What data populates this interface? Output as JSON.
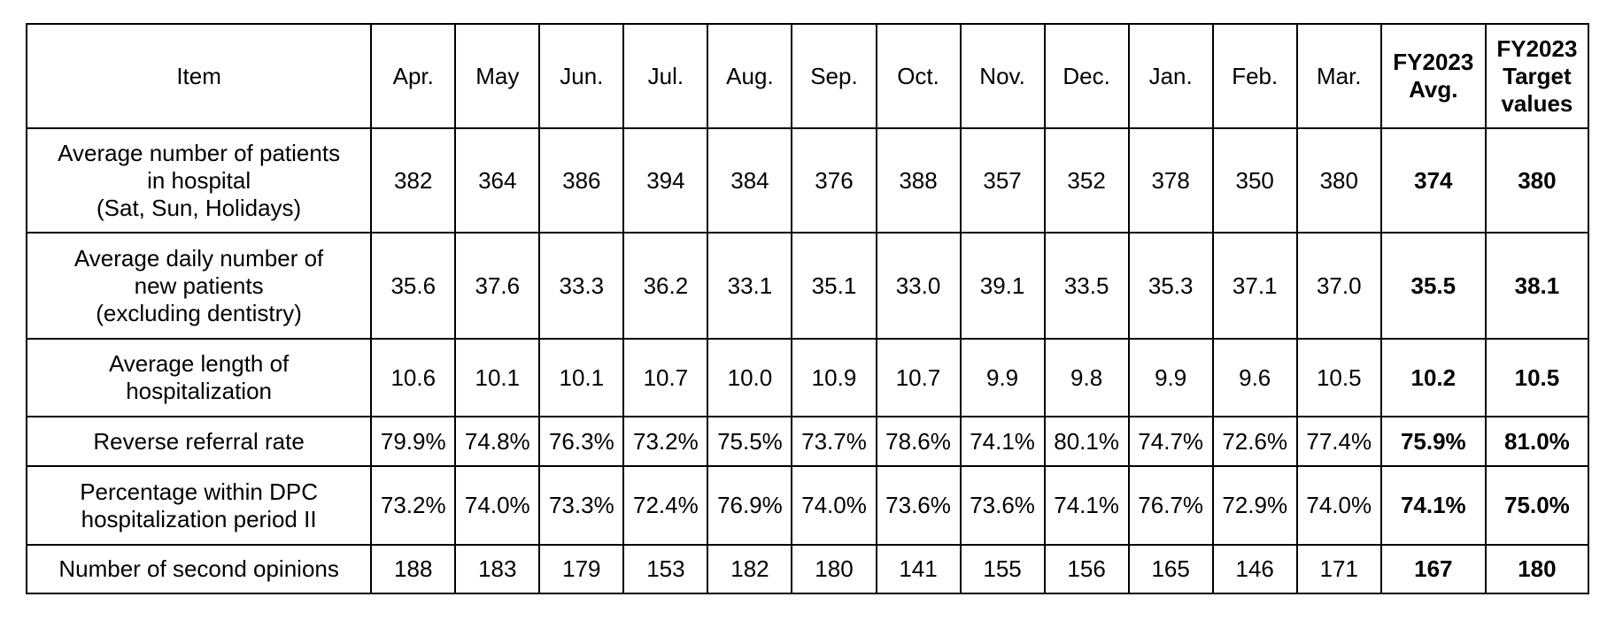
{
  "table": {
    "headers": {
      "item": "Item",
      "months": [
        "Apr.",
        "May",
        "Jun.",
        "Jul.",
        "Aug.",
        "Sep.",
        "Oct.",
        "Nov.",
        "Dec.",
        "Jan.",
        "Feb.",
        "Mar."
      ],
      "avg": "FY2023\nAvg.",
      "target": "FY2023\nTarget\nvalues"
    },
    "rows": [
      {
        "label": "Average number of patients\nin hospital\n(Sat, Sun, Holidays)",
        "values": [
          "382",
          "364",
          "386",
          "394",
          "384",
          "376",
          "388",
          "357",
          "352",
          "378",
          "350",
          "380"
        ],
        "avg": "374",
        "target": "380"
      },
      {
        "label": "Average daily number of\nnew patients\n(excluding dentistry)",
        "values": [
          "35.6",
          "37.6",
          "33.3",
          "36.2",
          "33.1",
          "35.1",
          "33.0",
          "39.1",
          "33.5",
          "35.3",
          "37.1",
          "37.0"
        ],
        "avg": "35.5",
        "target": "38.1"
      },
      {
        "label": "Average length of\nhospitalization",
        "values": [
          "10.6",
          "10.1",
          "10.1",
          "10.7",
          "10.0",
          "10.9",
          "10.7",
          "9.9",
          "9.8",
          "9.9",
          "9.6",
          "10.5"
        ],
        "avg": "10.2",
        "target": "10.5"
      },
      {
        "label": "Reverse referral rate",
        "values": [
          "79.9%",
          "74.8%",
          "76.3%",
          "73.2%",
          "75.5%",
          "73.7%",
          "78.6%",
          "74.1%",
          "80.1%",
          "74.7%",
          "72.6%",
          "77.4%"
        ],
        "avg": "75.9%",
        "target": "81.0%"
      },
      {
        "label": "Percentage within DPC\nhospitalization period II",
        "values": [
          "73.2%",
          "74.0%",
          "73.3%",
          "72.4%",
          "76.9%",
          "74.0%",
          "73.6%",
          "73.6%",
          "74.1%",
          "76.7%",
          "72.9%",
          "74.0%"
        ],
        "avg": "74.1%",
        "target": "75.0%"
      },
      {
        "label": "Number of second opinions",
        "values": [
          "188",
          "183",
          "179",
          "153",
          "182",
          "180",
          "141",
          "155",
          "156",
          "165",
          "146",
          "171"
        ],
        "avg": "167",
        "target": "180"
      }
    ]
  }
}
